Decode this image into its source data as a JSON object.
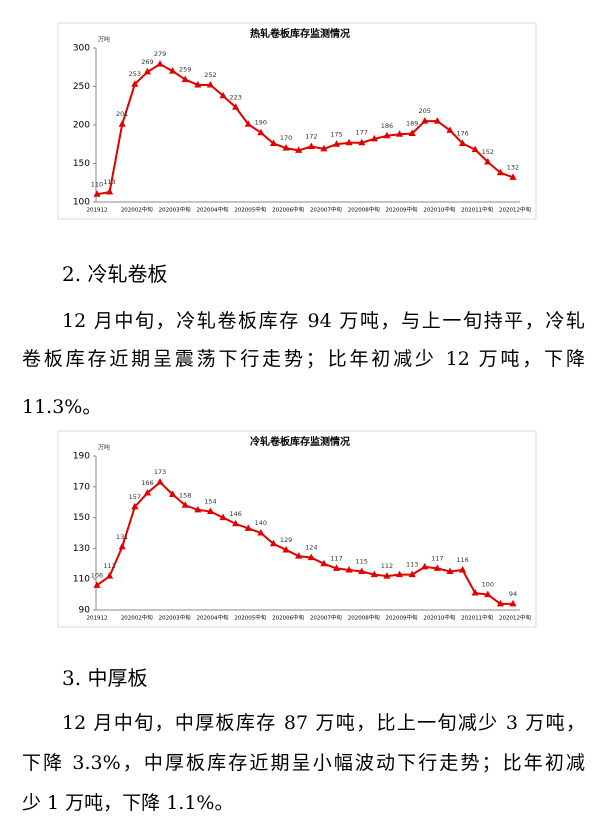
{
  "chart_data": [
    {
      "type": "line",
      "title": "热轧卷板库存监测情况",
      "unit": "万吨",
      "categories": [
        "201912",
        null,
        null,
        "202002中旬",
        null,
        null,
        "202003中旬",
        null,
        null,
        "202004中旬",
        null,
        null,
        "202005中旬",
        null,
        null,
        "202006中旬",
        null,
        null,
        "202007中旬",
        null,
        null,
        "202008中旬",
        null,
        null,
        "202009中旬",
        null,
        null,
        "202010中旬",
        null,
        null,
        "202011中旬",
        null,
        null,
        "202012中旬"
      ],
      "series": [
        {
          "name": "热轧卷板",
          "color": "#e00000",
          "values": [
            110,
            113,
            201,
            253,
            269,
            279,
            270,
            259,
            252,
            252,
            238,
            223,
            201,
            190,
            176,
            170,
            167,
            172,
            169,
            175,
            177,
            177,
            182,
            186,
            188,
            189,
            205,
            205,
            193,
            176,
            168,
            152,
            138,
            132
          ],
          "value_labels": [
            "110",
            "113",
            "201",
            "253",
            "269",
            "279",
            null,
            "259",
            null,
            "252",
            null,
            "223",
            null,
            "190",
            null,
            "170",
            null,
            "172",
            null,
            "175",
            null,
            "177",
            null,
            "186",
            null,
            "189",
            "205",
            null,
            null,
            "176",
            null,
            "152",
            null,
            "132"
          ]
        }
      ],
      "ylim": [
        100,
        300
      ],
      "yticks": [
        100,
        150,
        200,
        250,
        300
      ],
      "grid": false
    },
    {
      "type": "line",
      "title": "冷轧卷板库存监测情况",
      "unit": "万吨",
      "categories": [
        "201912",
        null,
        null,
        "202002中旬",
        null,
        null,
        "202003中旬",
        null,
        null,
        "202004中旬",
        null,
        null,
        "202005中旬",
        null,
        null,
        "202006中旬",
        null,
        null,
        "202007中旬",
        null,
        null,
        "202008中旬",
        null,
        null,
        "202009中旬",
        null,
        null,
        "202010中旬",
        null,
        null,
        "202011中旬",
        null,
        null,
        "202012中旬"
      ],
      "series": [
        {
          "name": "冷轧卷板",
          "color": "#e00000",
          "values": [
            106,
            112,
            131,
            157,
            166,
            173,
            165,
            158,
            155,
            154,
            150,
            146,
            143,
            140,
            133,
            129,
            125,
            124,
            120,
            117,
            116,
            115,
            113,
            112,
            113,
            113,
            118,
            117,
            115,
            116,
            101,
            100,
            94,
            94
          ],
          "value_labels": [
            "106",
            "112",
            "131",
            "157",
            "166",
            "173",
            null,
            "158",
            null,
            "154",
            null,
            "146",
            null,
            "140",
            null,
            "129",
            null,
            "124",
            null,
            "117",
            null,
            "115",
            null,
            "112",
            null,
            "113",
            null,
            "117",
            null,
            "116",
            null,
            "100",
            null,
            "94"
          ]
        }
      ],
      "ylim": [
        90,
        190
      ],
      "yticks": [
        90,
        110,
        130,
        150,
        170,
        190
      ],
      "grid": false
    }
  ],
  "sections": [
    {
      "heading": "2. 冷轧卷板",
      "lines": [
        "12 月中旬，冷轧卷板库存 94 万吨，与上一旬持平，冷轧",
        "卷板库存近期呈震荡下行走势；比年初减少 12 万吨，下降",
        "11.3%。"
      ]
    },
    {
      "heading": "3. 中厚板",
      "lines": [
        "12 月中旬，中厚板库存 87 万吨，比上一旬减少 3 万吨，",
        "下降 3.3%，中厚板库存近期呈小幅波动下行走势；比年初减",
        "少 1 万吨，下降 1.1%。"
      ]
    }
  ]
}
